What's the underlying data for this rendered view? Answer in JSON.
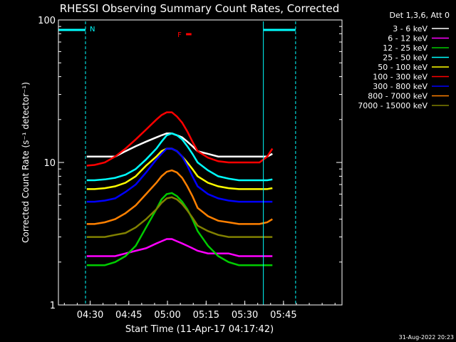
{
  "chart_data": {
    "type": "line",
    "title": "RHESSI Observing Summary Count Rates, Corrected",
    "xlabel": "Start Time (11-Apr-17 04:17:42)",
    "ylabel": "Corrected Count Rate (s⁻¹ detector⁻¹)",
    "y_scale": "log",
    "ylim": [
      1,
      100
    ],
    "xlim_minutes_after_start": [
      0,
      110
    ],
    "x_ticks": [
      {
        "label": "04:30",
        "minutes": 12.3
      },
      {
        "label": "04:45",
        "minutes": 27.3
      },
      {
        "label": "05:00",
        "minutes": 42.3
      },
      {
        "label": "05:15",
        "minutes": 57.3
      },
      {
        "label": "05:30",
        "minutes": 72.3
      },
      {
        "label": "05:45",
        "minutes": 87.3
      }
    ],
    "y_ticks": [
      {
        "label": "1",
        "value": 1
      },
      {
        "label": "10",
        "value": 10
      },
      {
        "label": "100",
        "value": 100
      }
    ],
    "x": [
      11,
      14,
      18,
      22,
      26,
      30,
      34,
      38,
      40,
      42,
      44,
      46,
      48,
      50,
      52,
      54,
      58,
      62,
      66,
      70,
      74,
      78,
      81,
      83
    ],
    "series": [
      {
        "name": "3 - 6 keV",
        "color": "#ffffff",
        "values": [
          11,
          11,
          11,
          11,
          12,
          13,
          14,
          15,
          15.5,
          16,
          16,
          15.5,
          15,
          14,
          13,
          12,
          11.5,
          11,
          11,
          11,
          11,
          11,
          11,
          11.5
        ]
      },
      {
        "name": "6 - 12 keV",
        "color": "#ff00ff",
        "values": [
          2.2,
          2.2,
          2.2,
          2.2,
          2.3,
          2.4,
          2.5,
          2.7,
          2.8,
          2.9,
          2.9,
          2.8,
          2.7,
          2.6,
          2.5,
          2.4,
          2.3,
          2.3,
          2.3,
          2.2,
          2.2,
          2.2,
          2.2,
          2.2
        ]
      },
      {
        "name": "12 - 25 keV",
        "color": "#00cc00",
        "values": [
          1.9,
          1.9,
          1.9,
          2.0,
          2.2,
          2.6,
          3.5,
          4.7,
          5.5,
          6.0,
          6.1,
          5.8,
          5.3,
          4.7,
          4.0,
          3.3,
          2.6,
          2.2,
          2.0,
          1.9,
          1.9,
          1.9,
          1.9,
          1.9
        ]
      },
      {
        "name": "25 - 50 keV",
        "color": "#00ffff",
        "values": [
          7.5,
          7.5,
          7.6,
          7.8,
          8.2,
          9.0,
          10.5,
          12.5,
          14.0,
          15.5,
          16.0,
          15.5,
          14.5,
          13.0,
          11.5,
          10.0,
          8.8,
          8.0,
          7.7,
          7.5,
          7.5,
          7.5,
          7.5,
          7.6
        ]
      },
      {
        "name": "50 - 100 keV",
        "color": "#ffff00",
        "values": [
          6.5,
          6.5,
          6.6,
          6.8,
          7.2,
          8.0,
          9.5,
          11.0,
          12.0,
          12.5,
          12.5,
          12.0,
          11.0,
          10.0,
          9.0,
          8.0,
          7.2,
          6.8,
          6.6,
          6.5,
          6.5,
          6.5,
          6.5,
          6.6
        ]
      },
      {
        "name": "100 - 300 keV",
        "color": "#ff0000",
        "values": [
          9.5,
          9.6,
          10.0,
          11.0,
          12.5,
          14.5,
          17.0,
          20.0,
          21.5,
          22.5,
          22.5,
          21.0,
          19.0,
          16.5,
          14.0,
          12.0,
          10.8,
          10.2,
          10.0,
          10.0,
          10.0,
          10.0,
          11.0,
          12.5
        ]
      },
      {
        "name": "300 - 800 keV",
        "color": "#0000ff",
        "values": [
          5.3,
          5.3,
          5.4,
          5.6,
          6.2,
          7.0,
          8.5,
          10.5,
          11.5,
          12.5,
          12.5,
          12.0,
          11.0,
          9.5,
          8.0,
          6.8,
          6.0,
          5.6,
          5.4,
          5.3,
          5.3,
          5.3,
          5.3,
          5.3
        ]
      },
      {
        "name": "800 - 7000 keV",
        "color": "#ff8000",
        "values": [
          3.7,
          3.7,
          3.8,
          4.0,
          4.4,
          5.0,
          6.0,
          7.2,
          8.0,
          8.6,
          8.8,
          8.5,
          7.8,
          6.8,
          5.8,
          4.8,
          4.2,
          3.9,
          3.8,
          3.7,
          3.7,
          3.7,
          3.8,
          4.0
        ]
      },
      {
        "name": "7000 - 15000 keV",
        "color": "#808000",
        "values": [
          3.0,
          3.0,
          3.0,
          3.1,
          3.2,
          3.5,
          4.0,
          4.7,
          5.2,
          5.6,
          5.7,
          5.5,
          5.1,
          4.6,
          4.1,
          3.6,
          3.3,
          3.1,
          3.0,
          3.0,
          3.0,
          3.0,
          3.0,
          3.0
        ]
      }
    ],
    "grid": false,
    "legend_title": "Det 1,3,6, Att 0",
    "legend_position": "right",
    "annotations": [
      {
        "text": "N",
        "color": "#00ffff"
      },
      {
        "text": "F",
        "color": "#ff0000"
      }
    ],
    "night_markers_minutes": [
      [
        0,
        10.5
      ],
      [
        79.5,
        92
      ]
    ],
    "flag_segment_minutes": [
      49.5,
      50.5
    ],
    "footer_date": "31-Aug-2022 20:23"
  }
}
